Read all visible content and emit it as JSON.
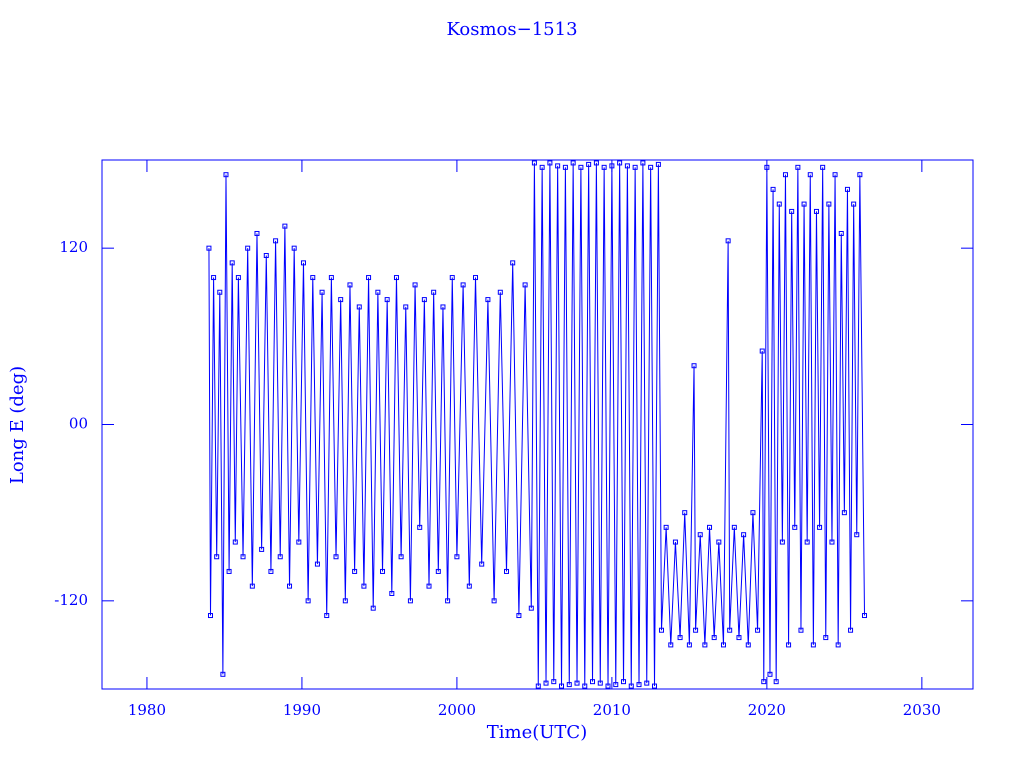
{
  "chart_data": {
    "type": "line",
    "title": "Kosmos−1513",
    "xlabel": "Time(UTC)",
    "ylabel": "Long E (deg)",
    "color": "#0000ff",
    "marker": "square",
    "xlim": [
      1977.1,
      2033.3
    ],
    "xticks": [
      1980,
      1990,
      2000,
      2010,
      2020,
      2030
    ],
    "ylim": [
      -180,
      180
    ],
    "yticks": [
      -120,
      {
        "value": 0,
        "label": "00"
      },
      120
    ],
    "x": [
      1984.0,
      1984.1,
      1984.3,
      1984.5,
      1984.7,
      1984.9,
      1985.1,
      1985.3,
      1985.5,
      1985.7,
      1985.9,
      1986.2,
      1986.5,
      1986.8,
      1987.1,
      1987.4,
      1987.7,
      1988.0,
      1988.3,
      1988.6,
      1988.9,
      1989.2,
      1989.5,
      1989.8,
      1990.1,
      1990.4,
      1990.7,
      1991.0,
      1991.3,
      1991.6,
      1991.9,
      1992.2,
      1992.5,
      1992.8,
      1993.1,
      1993.4,
      1993.7,
      1994.0,
      1994.3,
      1994.6,
      1994.9,
      1995.2,
      1995.5,
      1995.8,
      1996.1,
      1996.4,
      1996.7,
      1997.0,
      1997.3,
      1997.6,
      1997.9,
      1998.2,
      1998.5,
      1998.8,
      1999.1,
      1999.4,
      1999.7,
      2000.0,
      2000.4,
      2000.8,
      2001.2,
      2001.6,
      2002.0,
      2002.4,
      2002.8,
      2003.2,
      2003.6,
      2004.0,
      2004.4,
      2004.8,
      2005.0,
      2005.25,
      2005.5,
      2005.75,
      2006.0,
      2006.25,
      2006.5,
      2006.75,
      2007.0,
      2007.25,
      2007.5,
      2007.75,
      2008.0,
      2008.25,
      2008.5,
      2008.75,
      2009.0,
      2009.25,
      2009.5,
      2009.75,
      2010.0,
      2010.25,
      2010.5,
      2010.75,
      2011.0,
      2011.25,
      2011.5,
      2011.75,
      2012.0,
      2012.25,
      2012.5,
      2012.75,
      2013.0,
      2013.2,
      2013.5,
      2013.8,
      2014.1,
      2014.4,
      2014.7,
      2015.0,
      2015.3,
      2015.4,
      2015.7,
      2016.0,
      2016.3,
      2016.6,
      2016.9,
      2017.2,
      2017.5,
      2017.6,
      2017.9,
      2018.2,
      2018.5,
      2018.8,
      2019.1,
      2019.4,
      2019.7,
      2019.8,
      2020.0,
      2020.2,
      2020.4,
      2020.6,
      2020.8,
      2021.0,
      2021.2,
      2021.4,
      2021.6,
      2021.8,
      2022.0,
      2022.2,
      2022.4,
      2022.6,
      2022.8,
      2023.0,
      2023.2,
      2023.4,
      2023.6,
      2023.8,
      2024.0,
      2024.2,
      2024.4,
      2024.6,
      2024.8,
      2025.0,
      2025.2,
      2025.4,
      2025.6,
      2025.8,
      2026.0,
      2026.3
    ],
    "values": [
      120,
      -130,
      100,
      -90,
      90,
      -170,
      170,
      -100,
      110,
      -80,
      100,
      -90,
      120,
      -110,
      130,
      -85,
      115,
      -100,
      125,
      -90,
      135,
      -110,
      120,
      -80,
      110,
      -120,
      100,
      -95,
      90,
      -130,
      100,
      -90,
      85,
      -120,
      95,
      -100,
      80,
      -110,
      100,
      -125,
      90,
      -100,
      85,
      -115,
      100,
      -90,
      80,
      -120,
      95,
      -70,
      85,
      -110,
      90,
      -100,
      80,
      -120,
      100,
      -90,
      95,
      -110,
      100,
      -95,
      85,
      -120,
      90,
      -100,
      110,
      -130,
      95,
      -125,
      178,
      -178,
      175,
      -176,
      178,
      -175,
      176,
      -178,
      175,
      -177,
      178,
      -176,
      175,
      -178,
      177,
      -175,
      178,
      -176,
      175,
      -178,
      176,
      -177,
      178,
      -175,
      176,
      -178,
      175,
      -177,
      178,
      -176,
      175,
      -178,
      177,
      -140,
      -70,
      -150,
      -80,
      -145,
      -60,
      -150,
      40,
      -140,
      -75,
      -150,
      -70,
      -145,
      -80,
      -150,
      125,
      -140,
      -70,
      -145,
      -75,
      -150,
      -60,
      -140,
      50,
      -175,
      175,
      -170,
      160,
      -175,
      150,
      -80,
      170,
      -150,
      145,
      -70,
      175,
      -140,
      150,
      -80,
      170,
      -150,
      145,
      -70,
      175,
      -145,
      150,
      -80,
      170,
      -150,
      130,
      -60,
      160,
      -140,
      150,
      -75,
      170,
      -130
    ]
  }
}
